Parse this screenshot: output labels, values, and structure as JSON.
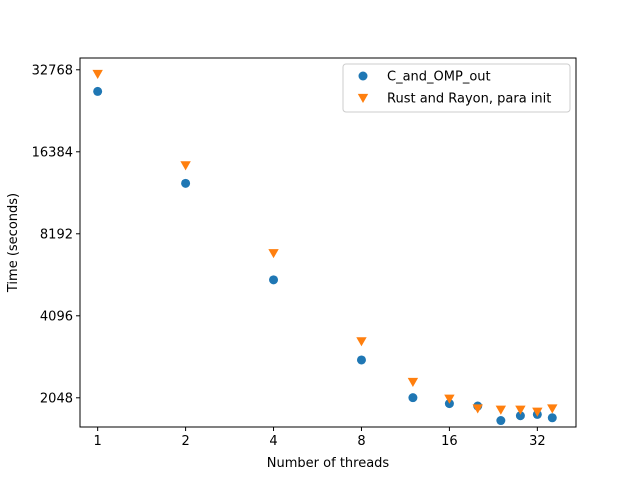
{
  "chart_data": {
    "type": "scatter",
    "title": "",
    "xlabel": "Number of threads",
    "ylabel": "Time (seconds)",
    "x_scale": "log2",
    "y_scale": "log2",
    "xlim": [
      0.87,
      43.4
    ],
    "ylim": [
      1600,
      36200
    ],
    "xticks": [
      1,
      2,
      4,
      8,
      16,
      32
    ],
    "xtick_labels": [
      "1",
      "2",
      "4",
      "8",
      "16",
      "32"
    ],
    "yticks": [
      2048,
      4096,
      8192,
      16384,
      32768
    ],
    "ytick_labels": [
      "2048",
      "4096",
      "8192",
      "16384",
      "32768"
    ],
    "grid": false,
    "legend_position": "top-right",
    "series": [
      {
        "name": "C_and_OMP_out",
        "marker": "circle",
        "color": "#1f77b4",
        "x": [
          1,
          2,
          4,
          8,
          12,
          16,
          20,
          24,
          28,
          32,
          36
        ],
        "y": [
          27300,
          12550,
          5550,
          2820,
          2050,
          1950,
          1910,
          1690,
          1760,
          1780,
          1730
        ]
      },
      {
        "name": "Rust and Rayon, para init",
        "marker": "triangle-down",
        "color": "#ff7f0e",
        "x": [
          1,
          2,
          4,
          8,
          12,
          16,
          20,
          24,
          28,
          32,
          36
        ],
        "y": [
          31600,
          14600,
          6950,
          3300,
          2340,
          2030,
          1870,
          1850,
          1850,
          1820,
          1870
        ]
      }
    ]
  }
}
